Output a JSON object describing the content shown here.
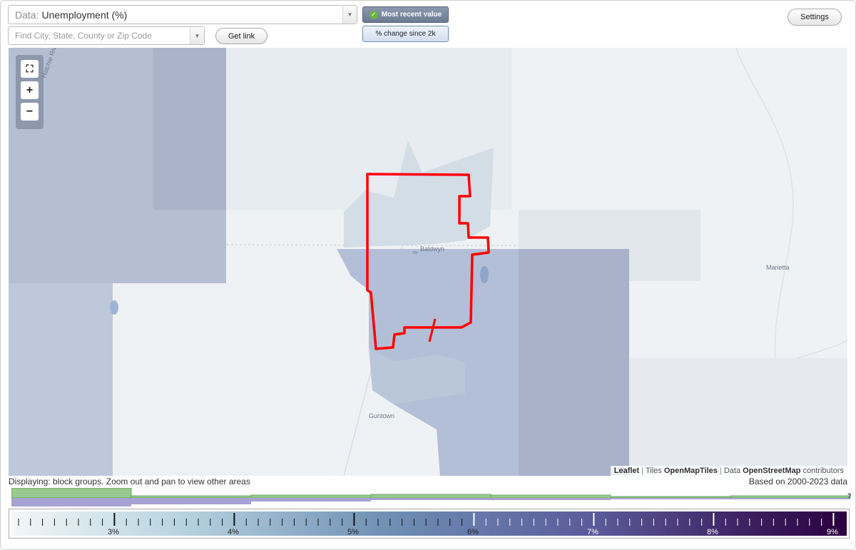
{
  "controls": {
    "data_prefix": "Data:",
    "data_value": "Unemployment (%)",
    "search_placeholder": "Find City, State, County or Zip Code",
    "get_link_label": "Get link",
    "most_recent_label": "Most recent value",
    "change_label": "% change since 2k",
    "settings_label": "Settings"
  },
  "map": {
    "place_labels": {
      "baldwyn": "Baldwyn",
      "marietta": "Marietta",
      "guntown": "Guntown",
      "river": "Hatchie River"
    },
    "attribution": {
      "leaflet": "Leaflet",
      "tiles_prefix": "Tiles",
      "tiles": "OpenMapTiles",
      "data_prefix": "Data",
      "data": "OpenStreetMap",
      "suffix": "contributors"
    },
    "highlight_color": "#ff0000"
  },
  "status": {
    "displaying": "Displaying: block groups. Zoom out and pan to view other areas",
    "based_on": "Based on 2000-2023 data"
  },
  "legend": {
    "ticks": [
      "3%",
      "4%",
      "5%",
      "6%",
      "7%",
      "8%",
      "9%"
    ],
    "help": "?"
  }
}
